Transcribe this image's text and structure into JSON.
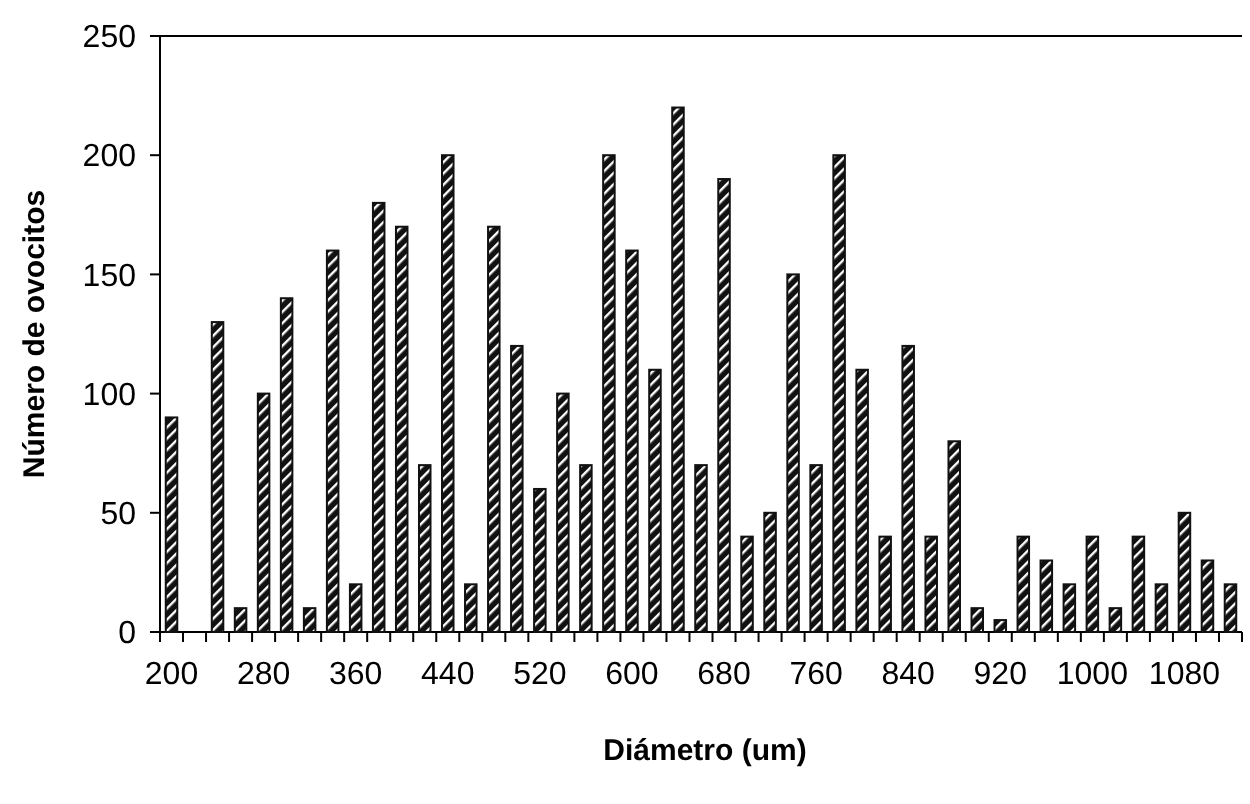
{
  "chart_data": {
    "type": "bar",
    "xlabel": "Diámetro (um)",
    "ylabel": "Número de ovocitos",
    "categories": [
      "200",
      null,
      null,
      null,
      "280",
      null,
      null,
      null,
      "360",
      null,
      null,
      null,
      "440",
      null,
      null,
      null,
      "520",
      null,
      null,
      null,
      "600",
      null,
      null,
      null,
      "680",
      null,
      null,
      null,
      "760",
      null,
      null,
      null,
      "840",
      null,
      null,
      null,
      "920",
      null,
      null,
      null,
      "1000",
      null,
      null,
      null,
      "1080",
      null,
      null
    ],
    "values": [
      90,
      0,
      130,
      10,
      100,
      140,
      10,
      160,
      20,
      180,
      170,
      70,
      200,
      20,
      170,
      120,
      60,
      100,
      70,
      200,
      160,
      110,
      220,
      70,
      190,
      40,
      50,
      150,
      70,
      200,
      110,
      40,
      120,
      40,
      80,
      10,
      5,
      40,
      30,
      20,
      40,
      10,
      40,
      20,
      50,
      30,
      20
    ],
    "color": "#111111",
    "ylim": [
      0,
      250
    ],
    "yticks": [
      0,
      50,
      100,
      150,
      200,
      250
    ]
  }
}
